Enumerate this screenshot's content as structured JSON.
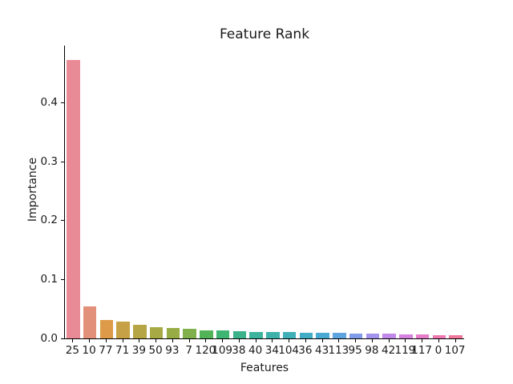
{
  "chart_data": {
    "type": "bar",
    "title": "Feature Rank",
    "xlabel": "Features",
    "ylabel": "Importance",
    "categories": [
      "25",
      "10",
      "77",
      "71",
      "39",
      "50",
      "93",
      "7",
      "120",
      "109",
      "38",
      "40",
      "34",
      "104",
      "36",
      "43",
      "113",
      "95",
      "98",
      "42",
      "119",
      "117",
      "0",
      "107"
    ],
    "values": [
      0.471,
      0.054,
      0.031,
      0.029,
      0.023,
      0.019,
      0.017,
      0.016,
      0.014,
      0.013,
      0.012,
      0.0115,
      0.011,
      0.0105,
      0.01,
      0.0095,
      0.009,
      0.0085,
      0.008,
      0.0075,
      0.007,
      0.0065,
      0.006,
      0.005
    ],
    "bar_colors": [
      "#e98b97",
      "#e3907b",
      "#dd9a49",
      "#c7a146",
      "#b5a545",
      "#a6a944",
      "#97ac45",
      "#7fb04b",
      "#52b457",
      "#3eb572",
      "#3cb28b",
      "#3db29c",
      "#3eb1ab",
      "#3fafb8",
      "#41adc4",
      "#48a9d2",
      "#5ea4df",
      "#809ce9",
      "#a293ec",
      "#c089e7",
      "#d681dd",
      "#e67cc9",
      "#ee78b1",
      "#f0769b"
    ],
    "yticks": [
      0.0,
      0.1,
      0.2,
      0.3,
      0.4
    ],
    "ytick_labels": [
      "0.0",
      "0.1",
      "0.2",
      "0.3",
      "0.4"
    ],
    "ylim": [
      0,
      0.496
    ],
    "grid": false,
    "legend": null,
    "background_color": "#ffffff",
    "text_color": "#1a1a1a"
  }
}
